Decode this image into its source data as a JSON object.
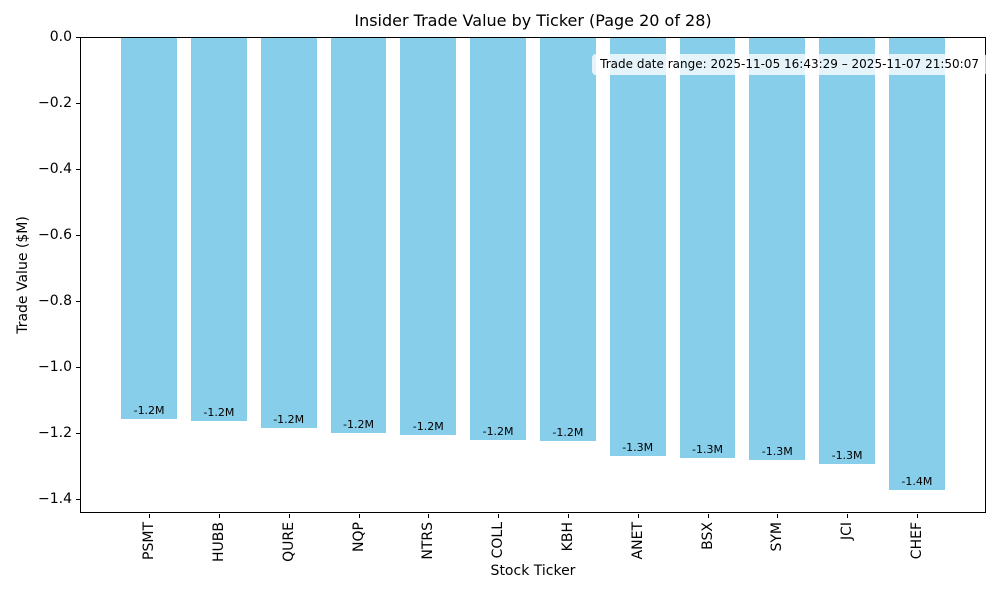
{
  "chart_data": {
    "type": "bar",
    "title": "Insider Trade Value by Ticker (Page 20 of 28)",
    "xlabel": "Stock Ticker",
    "ylabel": "Trade Value ($M)",
    "categories": [
      "PSMT",
      "HUBB",
      "QURE",
      "NQP",
      "NTRS",
      "COLL",
      "KBH",
      "ANET",
      "BSX",
      "SYM",
      "JCI",
      "CHEF"
    ],
    "values": [
      -1.158,
      -1.162,
      -1.184,
      -1.201,
      -1.207,
      -1.221,
      -1.224,
      -1.27,
      -1.276,
      -1.282,
      -1.294,
      -1.373
    ],
    "bar_labels": [
      "-1.2M",
      "-1.2M",
      "-1.2M",
      "-1.2M",
      "-1.2M",
      "-1.2M",
      "-1.2M",
      "-1.3M",
      "-1.3M",
      "-1.3M",
      "-1.3M",
      "-1.4M"
    ],
    "bar_color": "#87CEEB",
    "y_ticks": [
      {
        "value": 0.0,
        "label": "0.0"
      },
      {
        "value": -0.2,
        "label": "−0.2"
      },
      {
        "value": -0.4,
        "label": "−0.4"
      },
      {
        "value": -0.6,
        "label": "−0.6"
      },
      {
        "value": -0.8,
        "label": "−0.8"
      },
      {
        "value": -1.0,
        "label": "−1.0"
      },
      {
        "value": -1.2,
        "label": "−1.2"
      },
      {
        "value": -1.4,
        "label": "−1.4"
      }
    ],
    "ylim": [
      -1.4424,
      0
    ],
    "xlim": [
      -0.99,
      11.99
    ],
    "grid": false,
    "legend": null,
    "annotation": "Trade date range: 2025-11-05 16:43:29 – 2025-11-07 21:50:07"
  }
}
